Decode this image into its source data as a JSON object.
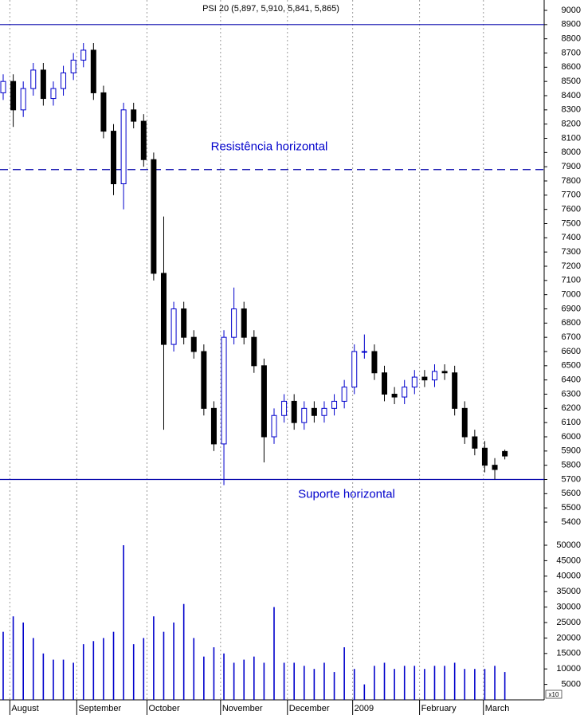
{
  "chart_data": [
    {
      "type": "candlestick",
      "title": "PSI 20 (5,897, 5,910, 5,841, 5,865)",
      "x": [
        0,
        3,
        6,
        9,
        12,
        15,
        18,
        21,
        24,
        27,
        30,
        33,
        36,
        39,
        42,
        45,
        48,
        51,
        54,
        57,
        60,
        63,
        66,
        69,
        72,
        75,
        78,
        81,
        84,
        87,
        90,
        93,
        96,
        99,
        102,
        105,
        108,
        111,
        114,
        117,
        120,
        123,
        126,
        129,
        132,
        135,
        138,
        141,
        144,
        147,
        150
      ],
      "open": [
        8420,
        8500,
        8300,
        8450,
        8580,
        8380,
        8450,
        8560,
        8650,
        8720,
        8420,
        8150,
        7780,
        8300,
        8220,
        7950,
        7150,
        6650,
        6900,
        6700,
        6600,
        6200,
        5950,
        6700,
        6900,
        6700,
        6500,
        6000,
        6150,
        6250,
        6100,
        6200,
        6150,
        6200,
        6250,
        6350,
        6600,
        6600,
        6450,
        6300,
        6280,
        6350,
        6420,
        6400,
        6460,
        6450,
        6200,
        6000,
        5920,
        5800,
        5897
      ],
      "high": [
        8550,
        8550,
        8500,
        8630,
        8630,
        8500,
        8610,
        8700,
        8770,
        8770,
        8470,
        8200,
        8350,
        8350,
        8270,
        8000,
        7550,
        6950,
        6950,
        6750,
        6650,
        6250,
        6750,
        7050,
        6950,
        6750,
        6550,
        6200,
        6300,
        6300,
        6250,
        6250,
        6250,
        6300,
        6400,
        6650,
        6720,
        6650,
        6500,
        6350,
        6400,
        6470,
        6470,
        6510,
        6510,
        6500,
        6250,
        6050,
        5970,
        5850,
        5910
      ],
      "low": [
        8370,
        8180,
        8250,
        8400,
        8330,
        8330,
        8400,
        8510,
        8600,
        8370,
        8100,
        7700,
        7600,
        8170,
        7900,
        7100,
        6050,
        6600,
        6650,
        6550,
        6150,
        5900,
        5660,
        6650,
        6650,
        6450,
        5820,
        5950,
        6100,
        6050,
        6050,
        6100,
        6100,
        6150,
        6200,
        6300,
        6550,
        6400,
        6250,
        6230,
        6230,
        6300,
        6350,
        6350,
        6400,
        6150,
        5950,
        5870,
        5750,
        5700,
        5841
      ],
      "close": [
        8500,
        8300,
        8450,
        8580,
        8380,
        8450,
        8560,
        8650,
        8720,
        8420,
        8150,
        7780,
        8300,
        8220,
        7950,
        7150,
        6650,
        6900,
        6700,
        6600,
        6200,
        5950,
        6700,
        6900,
        6700,
        6500,
        6000,
        6150,
        6250,
        6100,
        6200,
        6150,
        6200,
        6250,
        6350,
        6600,
        6600,
        6450,
        6300,
        6280,
        6350,
        6420,
        6400,
        6460,
        6450,
        6200,
        6000,
        5920,
        5800,
        5770,
        5865
      ],
      "up_color": "#0000cc",
      "down_color": "#000000",
      "xlim": [
        0,
        162
      ],
      "xticks": [
        {
          "value": 2,
          "label": "August"
        },
        {
          "value": 22,
          "label": "September"
        },
        {
          "value": 43,
          "label": "October"
        },
        {
          "value": 65,
          "label": "November"
        },
        {
          "value": 85,
          "label": "December"
        },
        {
          "value": 104.5,
          "label": "2009"
        },
        {
          "value": 124.5,
          "label": "February"
        },
        {
          "value": 143.6,
          "label": "March"
        }
      ],
      "ylim": [
        5400,
        9000
      ],
      "yticks": [
        5400,
        5500,
        5600,
        5700,
        5800,
        5900,
        6000,
        6100,
        6200,
        6300,
        6400,
        6500,
        6600,
        6700,
        6800,
        6900,
        7000,
        7100,
        7200,
        7300,
        7400,
        7500,
        7600,
        7700,
        7800,
        7900,
        8000,
        8100,
        8200,
        8300,
        8400,
        8500,
        8600,
        8700,
        8800,
        8900,
        9000
      ],
      "reference_lines": [
        {
          "value": 8900,
          "style": "solid",
          "color": "#0000aa"
        },
        {
          "value": 7880,
          "style": "dashed",
          "color": "#0000aa",
          "label": "Resistência horizontal"
        },
        {
          "value": 5700,
          "style": "solid",
          "color": "#0000aa",
          "label": "Suporte horizontal"
        }
      ],
      "grid": true
    },
    {
      "type": "bar",
      "unit_label": "x10",
      "x": [
        0,
        3,
        6,
        9,
        12,
        15,
        18,
        21,
        24,
        27,
        30,
        33,
        36,
        39,
        42,
        45,
        48,
        51,
        54,
        57,
        60,
        63,
        66,
        69,
        72,
        75,
        78,
        81,
        84,
        87,
        90,
        93,
        96,
        99,
        102,
        105,
        108,
        111,
        114,
        117,
        120,
        123,
        126,
        129,
        132,
        135,
        138,
        141,
        144,
        147,
        150
      ],
      "values": [
        22000,
        27000,
        25000,
        20000,
        15000,
        13000,
        13000,
        12000,
        18000,
        19000,
        20000,
        22000,
        50000,
        18000,
        20000,
        27000,
        22000,
        25000,
        31000,
        20000,
        14000,
        17000,
        15000,
        12000,
        13000,
        14000,
        12000,
        30000,
        12000,
        12000,
        11000,
        10000,
        12000,
        9000,
        17000,
        10000,
        5000,
        11000,
        12000,
        10000,
        11000,
        11000,
        10000,
        11000,
        11000,
        12000,
        10000,
        10000,
        10000,
        11000,
        9000
      ],
      "color": "#0000cc",
      "xlim": [
        0,
        162
      ],
      "ylim": [
        0,
        50000
      ],
      "yticks": [
        5000,
        10000,
        15000,
        20000,
        25000,
        30000,
        35000,
        40000,
        45000,
        50000
      ]
    }
  ]
}
